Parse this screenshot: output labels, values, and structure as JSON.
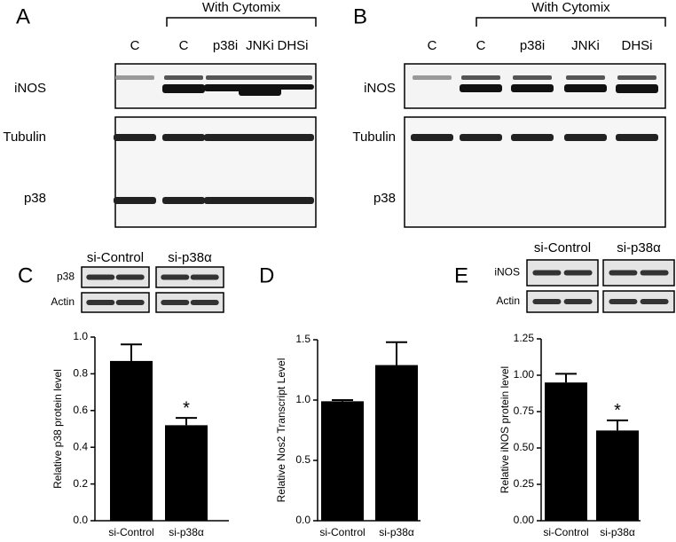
{
  "panel_labels": [
    "A",
    "B",
    "C",
    "D",
    "E"
  ],
  "blot_a": {
    "group": "With Cytomix",
    "lanes": [
      "C",
      "C",
      "p38i",
      "JNKi",
      "DHSi"
    ],
    "rows": [
      "iNOS",
      "Tubulin",
      "p38"
    ]
  },
  "blot_b": {
    "group": "With Cytomix",
    "lanes": [
      "C",
      "C",
      "p38i",
      "JNKi",
      "DHSi"
    ],
    "rows": [
      "iNOS",
      "Tubulin",
      "p38"
    ]
  },
  "blot_c": {
    "groups": [
      "si-Control",
      "si-p38α"
    ],
    "rows": [
      "p38",
      "Actin"
    ]
  },
  "blot_e": {
    "groups": [
      "si-Control",
      "si-p38α"
    ],
    "rows": [
      "iNOS",
      "Actin"
    ]
  },
  "chart_data": [
    {
      "type": "bar",
      "y_label": "Relative p38 protein level",
      "categories": [
        "si-Control",
        "si-p38α"
      ],
      "values": [
        0.87,
        0.52
      ],
      "errors": [
        0.09,
        0.04
      ],
      "significance_labels": [
        null,
        "*"
      ],
      "color": "#000000",
      "ylim": [
        0,
        1.0
      ],
      "yticks": [
        {
          "value": 0,
          "label": "0.0"
        },
        0.2,
        0.4,
        0.6,
        0.8,
        {
          "value": 1.0,
          "label": "1.0"
        }
      ]
    },
    {
      "type": "bar",
      "y_label": "Relative Nos2 Transcript Level",
      "categories": [
        "si-Control",
        "si-p38α"
      ],
      "values": [
        0.99,
        1.29
      ],
      "errors": [
        0.01,
        0.19
      ],
      "color": "#000000",
      "ylim": [
        0,
        1.5
      ],
      "yticks": [
        {
          "value": 0,
          "label": "0.0"
        },
        0.5,
        {
          "value": 1.0,
          "label": "1.0"
        },
        1.5
      ]
    },
    {
      "type": "bar",
      "y_label": "Relative iNOS protein level",
      "categories": [
        "si-Control",
        "si-p38α"
      ],
      "values": [
        0.95,
        0.62
      ],
      "errors": [
        0.06,
        0.07
      ],
      "significance_labels": [
        null,
        "*"
      ],
      "color": "#000000",
      "ylim": [
        0,
        1.25
      ],
      "yticks": [
        {
          "value": 0,
          "label": "0.00"
        },
        {
          "value": 0.25,
          "label": "0.25"
        },
        {
          "value": 0.5,
          "label": "0.50"
        },
        {
          "value": 0.75,
          "label": "0.75"
        },
        {
          "value": 1.0,
          "label": "1.00"
        },
        {
          "value": 1.25,
          "label": "1.25"
        }
      ]
    }
  ]
}
